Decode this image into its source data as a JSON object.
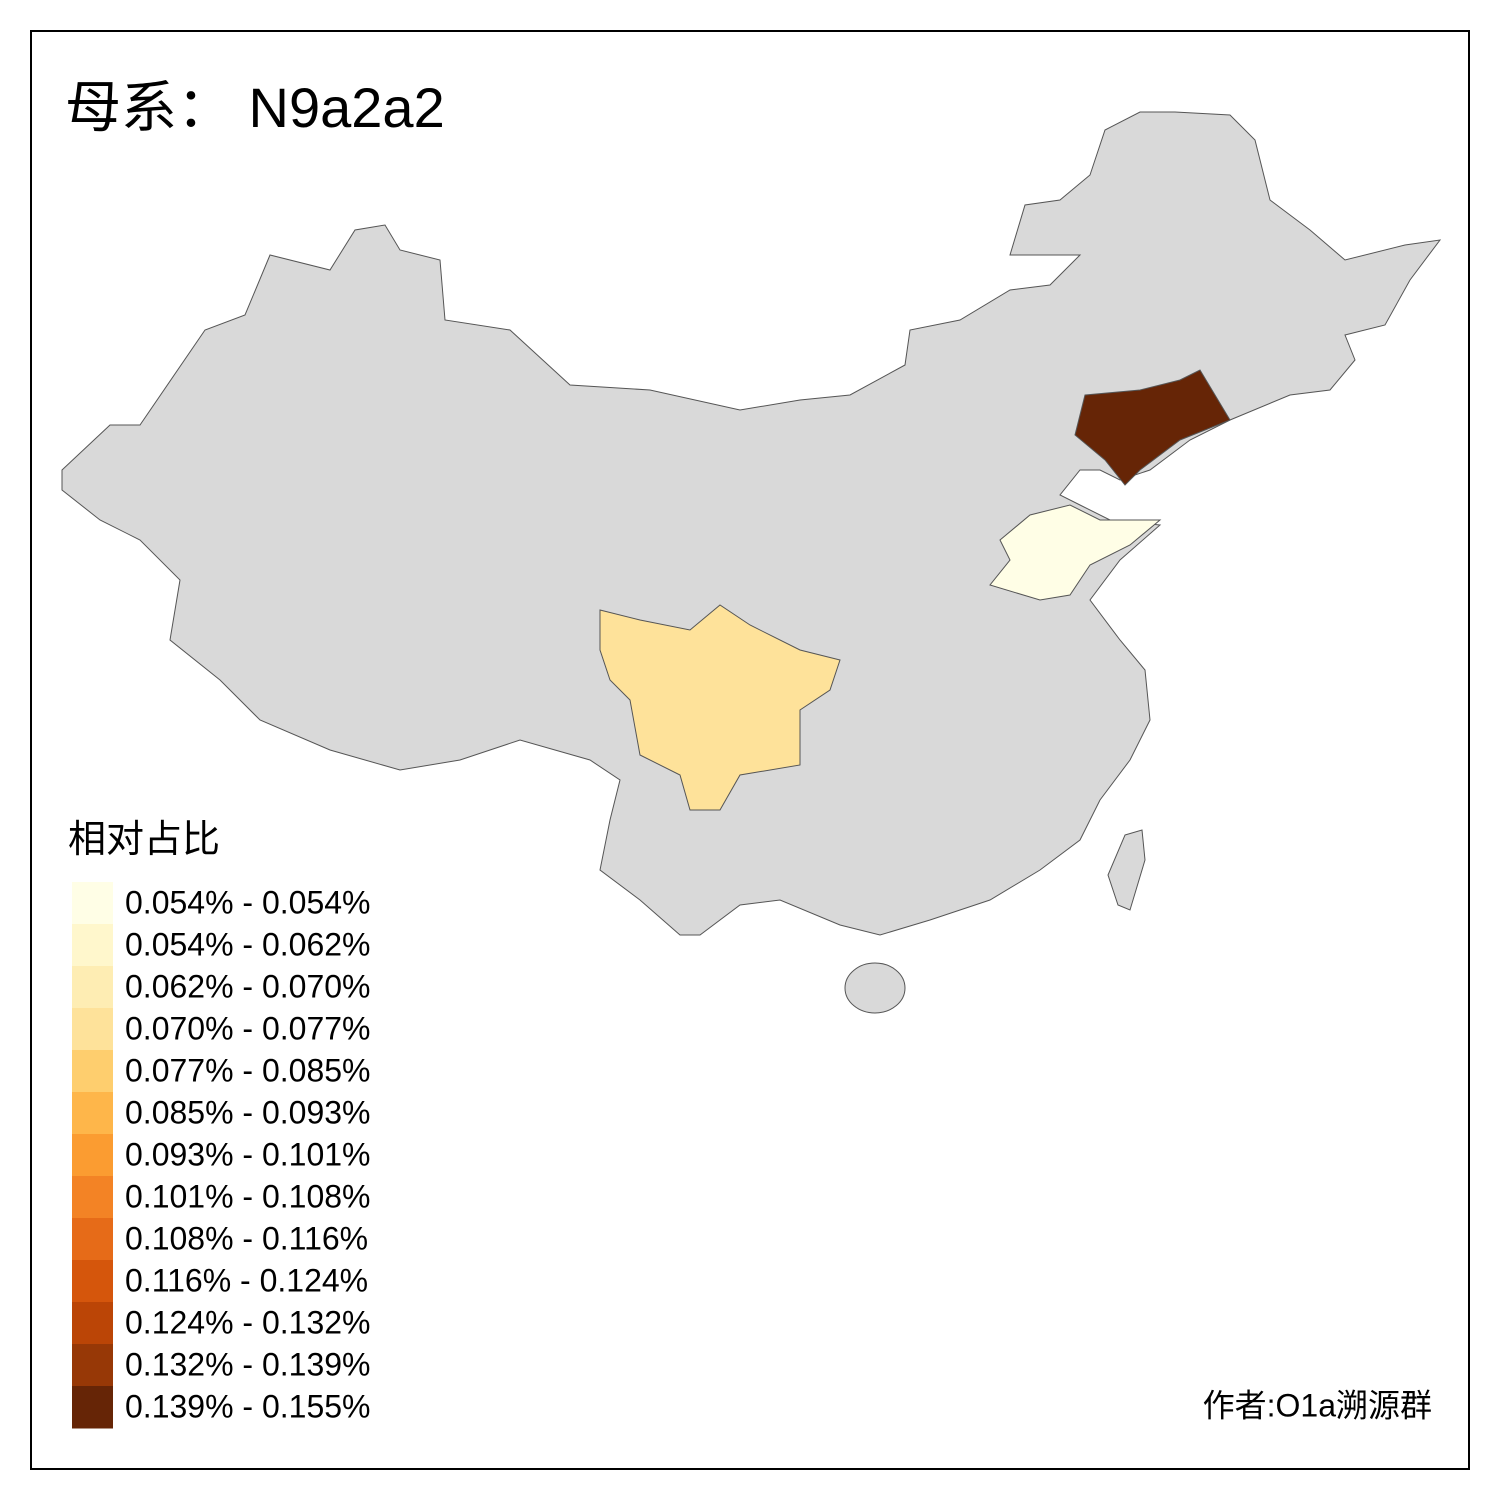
{
  "title": "母系： N9a2a2",
  "legend": {
    "title": "相对占比",
    "items": [
      {
        "label": "0.054% - 0.054%",
        "color": "#fffee6"
      },
      {
        "label": "0.054% - 0.062%",
        "color": "#fff7cc"
      },
      {
        "label": "0.062% - 0.070%",
        "color": "#feedb3"
      },
      {
        "label": "0.070% - 0.077%",
        "color": "#fee29a"
      },
      {
        "label": "0.077% - 0.085%",
        "color": "#fece6e"
      },
      {
        "label": "0.085% - 0.093%",
        "color": "#feb64a"
      },
      {
        "label": "0.093% - 0.101%",
        "color": "#fb9c31"
      },
      {
        "label": "0.101% - 0.108%",
        "color": "#f38325"
      },
      {
        "label": "0.108% - 0.116%",
        "color": "#e66b18"
      },
      {
        "label": "0.116% - 0.124%",
        "color": "#d5560c"
      },
      {
        "label": "0.124% - 0.132%",
        "color": "#bb4506"
      },
      {
        "label": "0.132% - 0.139%",
        "color": "#973806"
      },
      {
        "label": "0.139% - 0.155%",
        "color": "#662506"
      }
    ]
  },
  "credit": "作者:O1a溯源群"
}
